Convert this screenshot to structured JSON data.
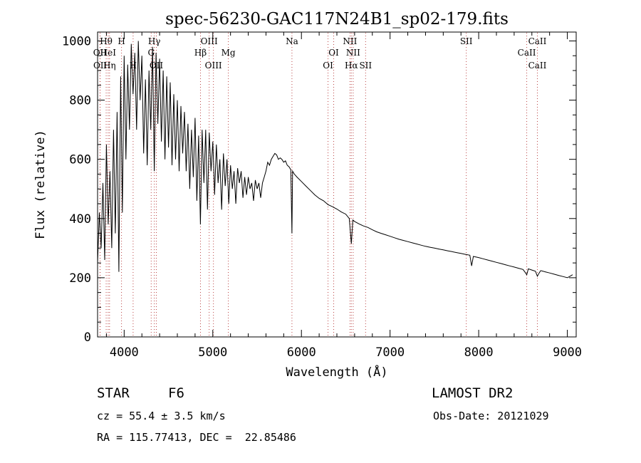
{
  "chart_data": {
    "type": "line",
    "title": "spec-56230-GAC117N24B1_sp02-179.fits",
    "xlabel": "Wavelength (Å)",
    "ylabel": "Flux (relative)",
    "xlim": [
      3700,
      9100
    ],
    "ylim": [
      0,
      1030
    ],
    "xticks": [
      4000,
      5000,
      6000,
      7000,
      8000,
      9000
    ],
    "yticks": [
      0,
      200,
      400,
      600,
      800,
      1000
    ],
    "grid": false,
    "series": [
      {
        "x": [
          3700,
          3720,
          3740,
          3760,
          3780,
          3800,
          3820,
          3840,
          3860,
          3880,
          3900,
          3920,
          3940,
          3960,
          3980,
          4000,
          4020,
          4040,
          4060,
          4080,
          4100,
          4120,
          4140,
          4160,
          4180,
          4200,
          4220,
          4240,
          4260,
          4280,
          4300,
          4320,
          4340,
          4360,
          4380,
          4400,
          4420,
          4440,
          4460,
          4480,
          4500,
          4520,
          4540,
          4560,
          4580,
          4600,
          4620,
          4640,
          4660,
          4680,
          4700,
          4720,
          4740,
          4760,
          4780,
          4800,
          4820,
          4840,
          4860,
          4880,
          4900,
          4920,
          4940,
          4960,
          4980,
          5000,
          5020,
          5040,
          5060,
          5080,
          5100,
          5120,
          5140,
          5160,
          5180,
          5200,
          5220,
          5240,
          5260,
          5280,
          5300,
          5320,
          5340,
          5360,
          5380,
          5400,
          5420,
          5440,
          5460,
          5480,
          5500,
          5520,
          5540,
          5560,
          5580,
          5600,
          5620,
          5640,
          5660,
          5680,
          5700,
          5720,
          5740,
          5760,
          5780,
          5800,
          5820,
          5840,
          5860,
          5880,
          5893,
          5900,
          5920,
          5950,
          6000,
          6050,
          6100,
          6150,
          6200,
          6250,
          6300,
          6350,
          6400,
          6450,
          6500,
          6540,
          6563,
          6580,
          6600,
          6650,
          6700,
          6750,
          6800,
          6850,
          6900,
          6950,
          7000,
          7050,
          7100,
          7150,
          7200,
          7250,
          7300,
          7350,
          7400,
          7450,
          7500,
          7550,
          7600,
          7650,
          7700,
          7750,
          7800,
          7850,
          7900,
          7920,
          7940,
          8000,
          8050,
          8100,
          8150,
          8200,
          8250,
          8300,
          8350,
          8400,
          8450,
          8500,
          8520,
          8542,
          8560,
          8600,
          8640,
          8662,
          8680,
          8700,
          8750,
          8800,
          8850,
          8900,
          8950,
          9000,
          9030,
          9060
        ],
        "y": [
          250,
          420,
          300,
          520,
          260,
          650,
          380,
          560,
          300,
          700,
          350,
          760,
          220,
          880,
          420,
          950,
          600,
          920,
          700,
          990,
          820,
          960,
          700,
          1000,
          800,
          950,
          620,
          870,
          580,
          900,
          700,
          980,
          560,
          960,
          720,
          940,
          660,
          900,
          600,
          880,
          640,
          860,
          580,
          820,
          600,
          800,
          560,
          780,
          620,
          760,
          560,
          720,
          500,
          700,
          540,
          740,
          460,
          680,
          380,
          700,
          520,
          700,
          430,
          690,
          560,
          660,
          480,
          650,
          520,
          600,
          430,
          620,
          510,
          600,
          450,
          580,
          500,
          560,
          450,
          570,
          520,
          560,
          470,
          540,
          480,
          540,
          500,
          520,
          460,
          530,
          500,
          520,
          470,
          520,
          540,
          560,
          590,
          580,
          600,
          610,
          620,
          615,
          600,
          605,
          600,
          590,
          595,
          580,
          575,
          565,
          350,
          560,
          550,
          540,
          525,
          510,
          495,
          480,
          468,
          460,
          447,
          440,
          432,
          422,
          415,
          400,
          315,
          395,
          390,
          382,
          375,
          370,
          362,
          355,
          350,
          345,
          340,
          335,
          330,
          326,
          322,
          318,
          314,
          310,
          306,
          303,
          300,
          297,
          294,
          291,
          288,
          285,
          282,
          279,
          276,
          240,
          272,
          268,
          264,
          260,
          256,
          252,
          248,
          244,
          240,
          236,
          232,
          228,
          220,
          210,
          230,
          226,
          222,
          205,
          215,
          224,
          220,
          216,
          212,
          208,
          204,
          200,
          205,
          210
        ]
      }
    ],
    "line_markers": [
      {
        "label": "Hθ",
        "x": 3797,
        "row": 1
      },
      {
        "label": "OII",
        "x": 3727,
        "row": 2
      },
      {
        "label": "HeI",
        "x": 3819,
        "row": 2
      },
      {
        "label": "OII",
        "x": 3729,
        "row": 3
      },
      {
        "label": "Hη",
        "x": 3835,
        "row": 3
      },
      {
        "label": "H",
        "x": 3970,
        "row": 1
      },
      {
        "label": "Hγ",
        "x": 4340,
        "row": 1
      },
      {
        "label": "G",
        "x": 4305,
        "row": 2
      },
      {
        "label": "H",
        "x": 4101,
        "row": 3
      },
      {
        "label": "OII",
        "x": 4363,
        "row": 3
      },
      {
        "label": "OIII",
        "x": 4959,
        "row": 1
      },
      {
        "label": "Hβ",
        "x": 4861,
        "row": 2
      },
      {
        "label": "Mg",
        "x": 5175,
        "row": 2
      },
      {
        "label": "OIII",
        "x": 5007,
        "row": 3
      },
      {
        "label": "Na",
        "x": 5893,
        "row": 1
      },
      {
        "label": "NII",
        "x": 6548,
        "row": 1
      },
      {
        "label": "OI",
        "x": 6364,
        "row": 2
      },
      {
        "label": "NII",
        "x": 6584,
        "row": 2
      },
      {
        "label": "OI",
        "x": 6300,
        "row": 3
      },
      {
        "label": "Hα",
        "x": 6563,
        "row": 3
      },
      {
        "label": "SII",
        "x": 6724,
        "row": 3
      },
      {
        "label": "SII",
        "x": 7860,
        "row": 1
      },
      {
        "label": "CaII",
        "x": 8662,
        "row": 1
      },
      {
        "label": "CaII",
        "x": 8542,
        "row": 2
      },
      {
        "label": "CaII",
        "x": 8662,
        "row": 3
      }
    ]
  },
  "info": {
    "object_type": "STAR",
    "subclass": "F6",
    "survey": "LAMOST DR2",
    "redshift": "cz = 55.4 ± 3.5 km/s",
    "obs_date": "Obs-Date: 20121029",
    "coords": "RA = 115.77413, DEC =  22.85486"
  }
}
